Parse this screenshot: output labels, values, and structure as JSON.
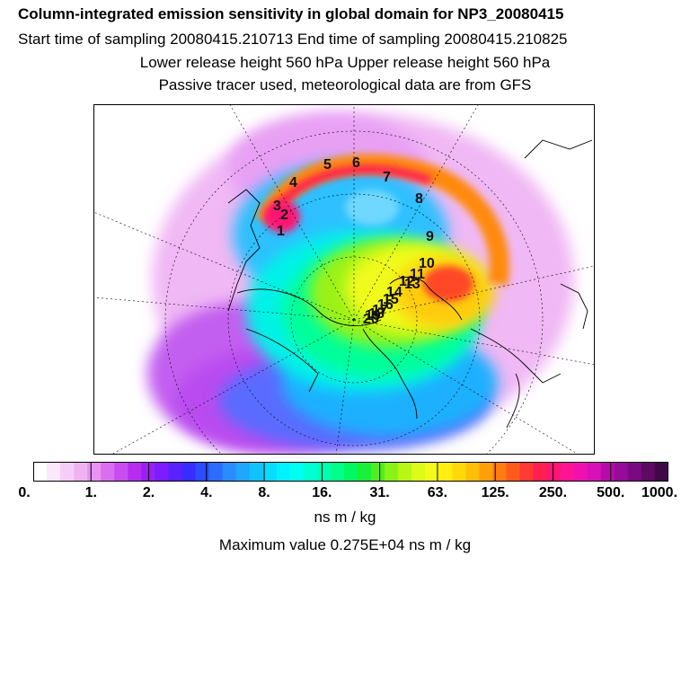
{
  "header": {
    "title": "Column-integrated emission sensitivity in global domain for NP3_20080415",
    "line2": "Start time of sampling 20080415.210713     End time of sampling 20080415.210825",
    "line3": "Lower release height  560 hPa        Upper release height  560 hPa",
    "line4": "Passive tracer used, meteorological data are from GFS"
  },
  "colorbar": {
    "ticks": [
      "0.",
      "1.",
      "2.",
      "4.",
      "8.",
      "16.",
      "31.",
      "63.",
      "125.",
      "250.",
      "500.",
      "1000."
    ],
    "colors": [
      "#ffffff",
      "#fbe8fb",
      "#f5cef7",
      "#efb3f3",
      "#e793f0",
      "#d96ef0",
      "#c84cf0",
      "#b62df0",
      "#9a1ff5",
      "#7c1cff",
      "#5a22ff",
      "#3a2cff",
      "#2b4cff",
      "#2c6cff",
      "#2a8cff",
      "#1fa6ff",
      "#12c2ff",
      "#08dcff",
      "#00f2ff",
      "#00fff0",
      "#00ffd2",
      "#00ffb0",
      "#00ff8a",
      "#00f860",
      "#19f03a",
      "#52ec20",
      "#8af218",
      "#b8f616",
      "#ddfa18",
      "#f4fb1a",
      "#ffee10",
      "#ffd80a",
      "#ffbe08",
      "#ff9f08",
      "#ff7c10",
      "#ff5a1c",
      "#ff3a32",
      "#ff1f50",
      "#ff1474",
      "#ff1494",
      "#f010b0",
      "#d810b8",
      "#b80ca8",
      "#980a98",
      "#7a0a80",
      "#5c0a62",
      "#400848"
    ]
  },
  "unit_label": "ns m / kg",
  "max_label": "Maximum value  0.275E+04 ns m / kg",
  "map": {
    "track_numbers": [
      "1",
      "2",
      "3",
      "4",
      "5",
      "6",
      "7",
      "8",
      "9",
      "10",
      "11",
      "12",
      "13",
      "14",
      "15",
      "16",
      "17",
      "18",
      "19",
      "20"
    ]
  }
}
